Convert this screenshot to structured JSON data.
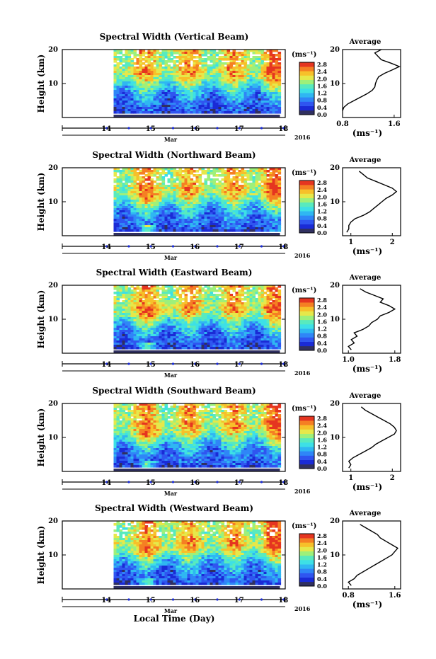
{
  "figure": {
    "xlabel": "Local Time (Day)"
  },
  "colors": {
    "colormap": [
      "#303060",
      "#1a2bd6",
      "#2f55f0",
      "#2f86f7",
      "#2fb7f2",
      "#3de0e6",
      "#58eabe",
      "#9ef07a",
      "#e6e84a",
      "#f7c02a",
      "#f57f23",
      "#e53520"
    ],
    "axis": "#000000",
    "day_marker": "#1a2bd6",
    "profile_line": "#000000"
  },
  "chart_data": [
    {
      "type": "heatmap",
      "title": "Spectral Width (Vertical Beam)",
      "ylabel": "Height (km)",
      "ylim": [
        0,
        20
      ],
      "yticks": [
        "20",
        "10"
      ],
      "xticks": [
        "14",
        "15",
        "16",
        "17",
        "18"
      ],
      "month_label": "Mar",
      "year_label": "2016",
      "data_start_day": 14.66,
      "data_end_day": 18.42,
      "colorbar": {
        "unit": "(ms⁻¹)",
        "range": [
          0,
          2.8
        ],
        "ticks": [
          "2.8",
          "2.4",
          "2.0",
          "1.6",
          "1.2",
          "0.8",
          "0.4",
          "0.0"
        ]
      },
      "profile": {
        "title": "Average",
        "xlabel": "(ms⁻¹)",
        "xticks": [
          "0.8",
          "1.6"
        ],
        "xlim": [
          0.8,
          1.7
        ],
        "tick_values": [
          0.8,
          1.6
        ],
        "height": [
          2,
          3,
          4,
          5,
          6,
          7,
          8,
          9,
          10,
          11,
          12,
          13,
          14,
          15,
          16,
          17,
          18,
          19,
          20
        ],
        "value": [
          0.8,
          0.82,
          0.88,
          0.98,
          1.08,
          1.18,
          1.26,
          1.3,
          1.31,
          1.33,
          1.36,
          1.45,
          1.57,
          1.68,
          1.55,
          1.4,
          1.35,
          1.3,
          1.4
        ]
      }
    },
    {
      "type": "heatmap",
      "title": "Spectral Width (Northward Beam)",
      "ylabel": "Height (km)",
      "ylim": [
        0,
        20
      ],
      "yticks": [
        "20",
        "10"
      ],
      "xticks": [
        "14",
        "15",
        "16",
        "17",
        "18"
      ],
      "month_label": "Mar",
      "year_label": "2016",
      "data_start_day": 14.66,
      "data_end_day": 18.42,
      "colorbar": {
        "unit": "(ms⁻¹)",
        "range": [
          0,
          2.8
        ],
        "ticks": [
          "2.8",
          "2.4",
          "2.0",
          "1.6",
          "1.2",
          "0.8",
          "0.4",
          "0.0"
        ]
      },
      "profile": {
        "title": "Average",
        "xlabel": "(ms⁻¹)",
        "xticks": [
          "1",
          "2"
        ],
        "xlim": [
          0.8,
          2.2
        ],
        "tick_values": [
          1,
          2
        ],
        "height": [
          1,
          2,
          3,
          4,
          5,
          6,
          7,
          8,
          9,
          10,
          11,
          12,
          13,
          14,
          15,
          16,
          17,
          18,
          19
        ],
        "value": [
          0.9,
          0.95,
          0.95,
          1.0,
          1.1,
          1.3,
          1.45,
          1.55,
          1.65,
          1.75,
          1.85,
          2.0,
          2.1,
          2.0,
          1.8,
          1.6,
          1.4,
          1.3,
          1.2
        ]
      }
    },
    {
      "type": "heatmap",
      "title": "Spectral Width (Eastward Beam)",
      "ylabel": "Height (km)",
      "ylim": [
        0,
        20
      ],
      "yticks": [
        "20",
        "10"
      ],
      "xticks": [
        "14",
        "15",
        "16",
        "17",
        "18"
      ],
      "month_label": "Mar",
      "year_label": "2016",
      "data_start_day": 14.66,
      "data_end_day": 18.42,
      "colorbar": {
        "unit": "(ms⁻¹)",
        "range": [
          0,
          2.8
        ],
        "ticks": [
          "2.8",
          "2.4",
          "2.0",
          "1.6",
          "1.2",
          "0.8",
          "0.4",
          "0.0"
        ]
      },
      "profile": {
        "title": "Average",
        "xlabel": "(ms⁻¹)",
        "xticks": [
          "1.0",
          "1.8"
        ],
        "xlim": [
          0.9,
          1.9
        ],
        "tick_values": [
          1.0,
          1.8
        ],
        "height": [
          1,
          2,
          3,
          4,
          5,
          6,
          7,
          8,
          9,
          10,
          11,
          12,
          13,
          14,
          15,
          16,
          17,
          18,
          19
        ],
        "value": [
          1.05,
          1.0,
          1.1,
          1.05,
          1.15,
          1.1,
          1.25,
          1.35,
          1.4,
          1.5,
          1.55,
          1.7,
          1.8,
          1.7,
          1.55,
          1.6,
          1.45,
          1.3,
          1.2
        ]
      }
    },
    {
      "type": "heatmap",
      "title": "Spectral Width (Southward Beam)",
      "ylabel": "Height (km)",
      "ylim": [
        0,
        20
      ],
      "yticks": [
        "20",
        "10"
      ],
      "xticks": [
        "14",
        "15",
        "16",
        "17",
        "18"
      ],
      "month_label": "Mar",
      "year_label": "2016",
      "data_start_day": 14.66,
      "data_end_day": 18.42,
      "colorbar": {
        "unit": "(ms⁻¹)",
        "range": [
          0,
          2.8
        ],
        "ticks": [
          "2.8",
          "2.4",
          "2.0",
          "1.6",
          "1.2",
          "0.8",
          "0.4",
          "0.0"
        ]
      },
      "profile": {
        "title": "Average",
        "xlabel": "(ms⁻¹)",
        "xticks": [
          "1",
          "2"
        ],
        "xlim": [
          0.8,
          2.2
        ],
        "tick_values": [
          1,
          2
        ],
        "height": [
          1,
          2,
          3,
          4,
          5,
          6,
          7,
          8,
          9,
          10,
          11,
          12,
          13,
          14,
          15,
          16,
          17,
          18,
          19
        ],
        "value": [
          0.95,
          1.0,
          0.95,
          1.05,
          1.2,
          1.35,
          1.5,
          1.6,
          1.75,
          1.9,
          2.05,
          2.1,
          2.05,
          1.95,
          1.8,
          1.65,
          1.5,
          1.35,
          1.25
        ]
      }
    },
    {
      "type": "heatmap",
      "title": "Spectral Width (Westward Beam)",
      "ylabel": "Height (km)",
      "ylim": [
        0,
        20
      ],
      "yticks": [
        "20",
        "10"
      ],
      "xticks": [
        "14",
        "15",
        "16",
        "17",
        "18"
      ],
      "month_label": "Mar",
      "year_label": "2016",
      "data_start_day": 14.66,
      "data_end_day": 18.42,
      "colorbar": {
        "unit": "(ms⁻¹)",
        "range": [
          0,
          2.8
        ],
        "ticks": [
          "2.8",
          "2.4",
          "2.0",
          "1.6",
          "1.2",
          "0.8",
          "0.4",
          "0.0"
        ]
      },
      "profile": {
        "title": "Average",
        "xlabel": "(ms⁻¹)",
        "xticks": [
          "0.8",
          "1.6"
        ],
        "xlim": [
          0.7,
          1.7
        ],
        "tick_values": [
          0.8,
          1.6
        ],
        "height": [
          1,
          2,
          3,
          4,
          5,
          6,
          7,
          8,
          9,
          10,
          11,
          12,
          13,
          14,
          15,
          16,
          17,
          18,
          19
        ],
        "value": [
          0.85,
          0.8,
          0.9,
          0.95,
          1.05,
          1.15,
          1.25,
          1.35,
          1.45,
          1.55,
          1.6,
          1.65,
          1.55,
          1.45,
          1.35,
          1.3,
          1.2,
          1.1,
          1.0
        ]
      }
    }
  ]
}
